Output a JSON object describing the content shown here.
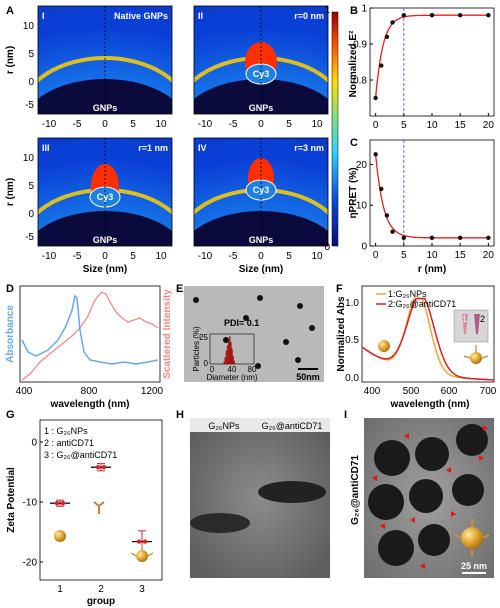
{
  "panel_letters": {
    "a": "A",
    "b": "B",
    "c": "C",
    "d": "D",
    "e": "E",
    "f": "F",
    "g": "G",
    "h": "H",
    "i": "I"
  },
  "panel_a": {
    "subpanels": [
      {
        "numeral": "I",
        "title": "Native GNPs",
        "cy3": ""
      },
      {
        "numeral": "II",
        "title": "r=0 nm",
        "cy3": "Cy3"
      },
      {
        "numeral": "III",
        "title": "r=1 nm",
        "cy3": "Cy3"
      },
      {
        "numeral": "IV",
        "title": "r=3 nm",
        "cy3": "Cy3"
      }
    ],
    "particle_label": "GNPs",
    "x_ticks": [
      "-10",
      "-5",
      "0",
      "5",
      "10"
    ],
    "y_ticks": [
      "10",
      "5",
      "0",
      "-5"
    ],
    "xlabel": "Size (nm)",
    "ylabel": "r (nm)",
    "colorbar_ticks": [
      "1",
      "0"
    ]
  },
  "chart_data": [
    {
      "type": "scatter",
      "panel": "B",
      "title": "",
      "xlabel": "",
      "ylabel": "Normalized E²",
      "x": [
        0,
        1,
        2,
        3,
        5,
        10,
        15,
        20
      ],
      "y": [
        0.75,
        0.84,
        0.92,
        0.96,
        0.98,
        0.98,
        0.98,
        0.98
      ],
      "xlim": [
        -1,
        21
      ],
      "ylim": [
        0.7,
        1.0
      ],
      "x_ticks": [
        "0",
        "5",
        "10",
        "15",
        "20"
      ],
      "y_ticks": [
        "1",
        "0.9",
        "0.8"
      ],
      "fit": "exponential",
      "vline_x": 5
    },
    {
      "type": "scatter",
      "panel": "C",
      "title": "",
      "xlabel": "r (nm)",
      "ylabel": "ηPRET (%)",
      "x": [
        0,
        1,
        2,
        3,
        5,
        10,
        15,
        20
      ],
      "y": [
        22.5,
        14,
        7.5,
        3.5,
        2,
        2,
        2,
        2
      ],
      "xlim": [
        -1,
        21
      ],
      "ylim": [
        0,
        26
      ],
      "x_ticks": [
        "0",
        "5",
        "10",
        "15",
        "20"
      ],
      "y_ticks": [
        "20",
        "10",
        "0"
      ],
      "fit": "exponential",
      "vline_x": 5
    },
    {
      "type": "line",
      "panel": "D",
      "xlabel": "wavelength (nm)",
      "ylabel_left": "Absorbance",
      "ylabel_right": "Scattered Intensity",
      "xlim": [
        400,
        1250
      ],
      "x_ticks": [
        "400",
        "800",
        "1200"
      ],
      "series": [
        {
          "name": "Absorbance",
          "color": "#6aa7e8"
        },
        {
          "name": "Scattered Intensity",
          "color": "#f08a8a"
        }
      ]
    },
    {
      "type": "bar",
      "panel": "E",
      "inset_ylabel": "Particles (%)",
      "inset_xlabel": "Diameter (nm)",
      "categories": [
        26,
        28,
        30,
        32,
        34,
        36,
        38,
        40,
        42,
        44
      ],
      "values": [
        3,
        8,
        16,
        22,
        28,
        33,
        26,
        18,
        9,
        4
      ],
      "x_ticks": [
        "0",
        "40",
        "80"
      ],
      "y_ticks": [
        "25",
        "0"
      ],
      "annotation": "PDI= 0.1",
      "scale_bar": "50nm"
    },
    {
      "type": "line",
      "panel": "F",
      "xlabel": "wavelength (nm)",
      "ylabel": "Normalized Abs",
      "xlim": [
        380,
        720
      ],
      "ylim": [
        0,
        1.15
      ],
      "x_ticks": [
        "400",
        "500",
        "600",
        "700"
      ],
      "y_ticks": [
        "1.0",
        "0.5",
        "0.0"
      ],
      "series": [
        {
          "name": "1:G₂₆NPs",
          "color": "#f0a830",
          "peak": 525,
          "width": 42
        },
        {
          "name": "2:G₂₆@antiCD71",
          "color": "#d9202a",
          "peak": 531,
          "width": 48
        }
      ],
      "inset_labels": [
        "1",
        "2"
      ]
    },
    {
      "type": "scatter",
      "panel": "G",
      "xlabel": "group",
      "ylabel": "Zeta Potential",
      "categories": [
        "1",
        "2",
        "3"
      ],
      "values": [
        -10.2,
        -4.2,
        -16.6
      ],
      "errors": [
        0.5,
        0.6,
        1.8
      ],
      "ylim": [
        -20,
        0
      ],
      "y_ticks": [
        "0",
        "-10",
        "-20"
      ],
      "legend": [
        "1 : G₂₆NPs",
        "2 : antiCD71",
        "3 : G₂₆@antiCD71"
      ]
    }
  ],
  "panel_h": {
    "lane1": "G₂₆NPs",
    "lane2": "G₂₆@antiCD71"
  },
  "panel_i": {
    "side_label": "G₂₆@antiCD71",
    "scale_bar": "25 nm"
  }
}
